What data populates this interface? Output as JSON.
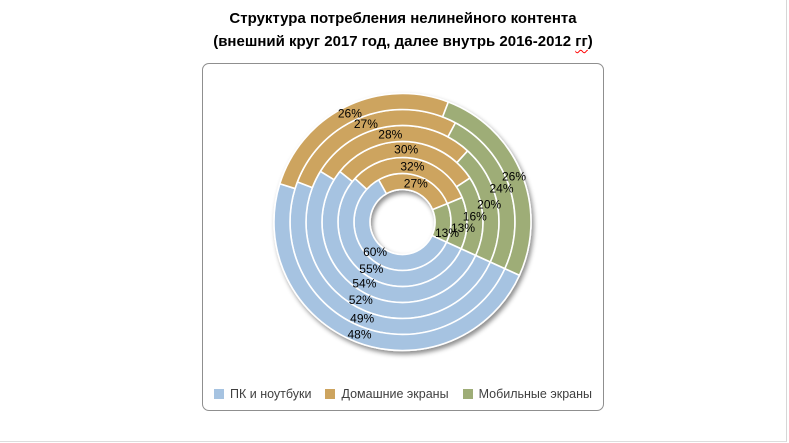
{
  "title": {
    "line1": "Структура потребления нелинейного контента",
    "line2_pre": "(внешний круг 2017 год, далее внутрь 2016-2012 ",
    "line2_word": "гг",
    "line2_post": ")",
    "spellcheck_color": "#ff0000"
  },
  "chart_data": {
    "type": "donut",
    "title": "Структура потребления нелинейного контента (внешний круг 2017 год, далее внутрь 2016-2012 гг)",
    "series_names": [
      "ПК и ноутбуки",
      "Домашние экраны",
      "Мобильные экраны"
    ],
    "series_colors": [
      "#a6c3e1",
      "#cda45f",
      "#9ead77"
    ],
    "ring_order": "inner-to-outer",
    "rings": [
      {
        "year": "2012",
        "values": [
          60,
          27,
          13
        ]
      },
      {
        "year": "2013",
        "values": [
          55,
          32,
          13
        ]
      },
      {
        "year": "2014",
        "values": [
          54,
          30,
          16
        ]
      },
      {
        "year": "2015",
        "values": [
          52,
          28,
          20
        ]
      },
      {
        "year": "2016",
        "values": [
          49,
          27,
          24
        ]
      },
      {
        "year": "2017",
        "values": [
          48,
          26,
          26
        ]
      }
    ],
    "label_format": "{value}%",
    "rotation_deg": 114.5,
    "legend_position": "bottom",
    "grid": false
  }
}
